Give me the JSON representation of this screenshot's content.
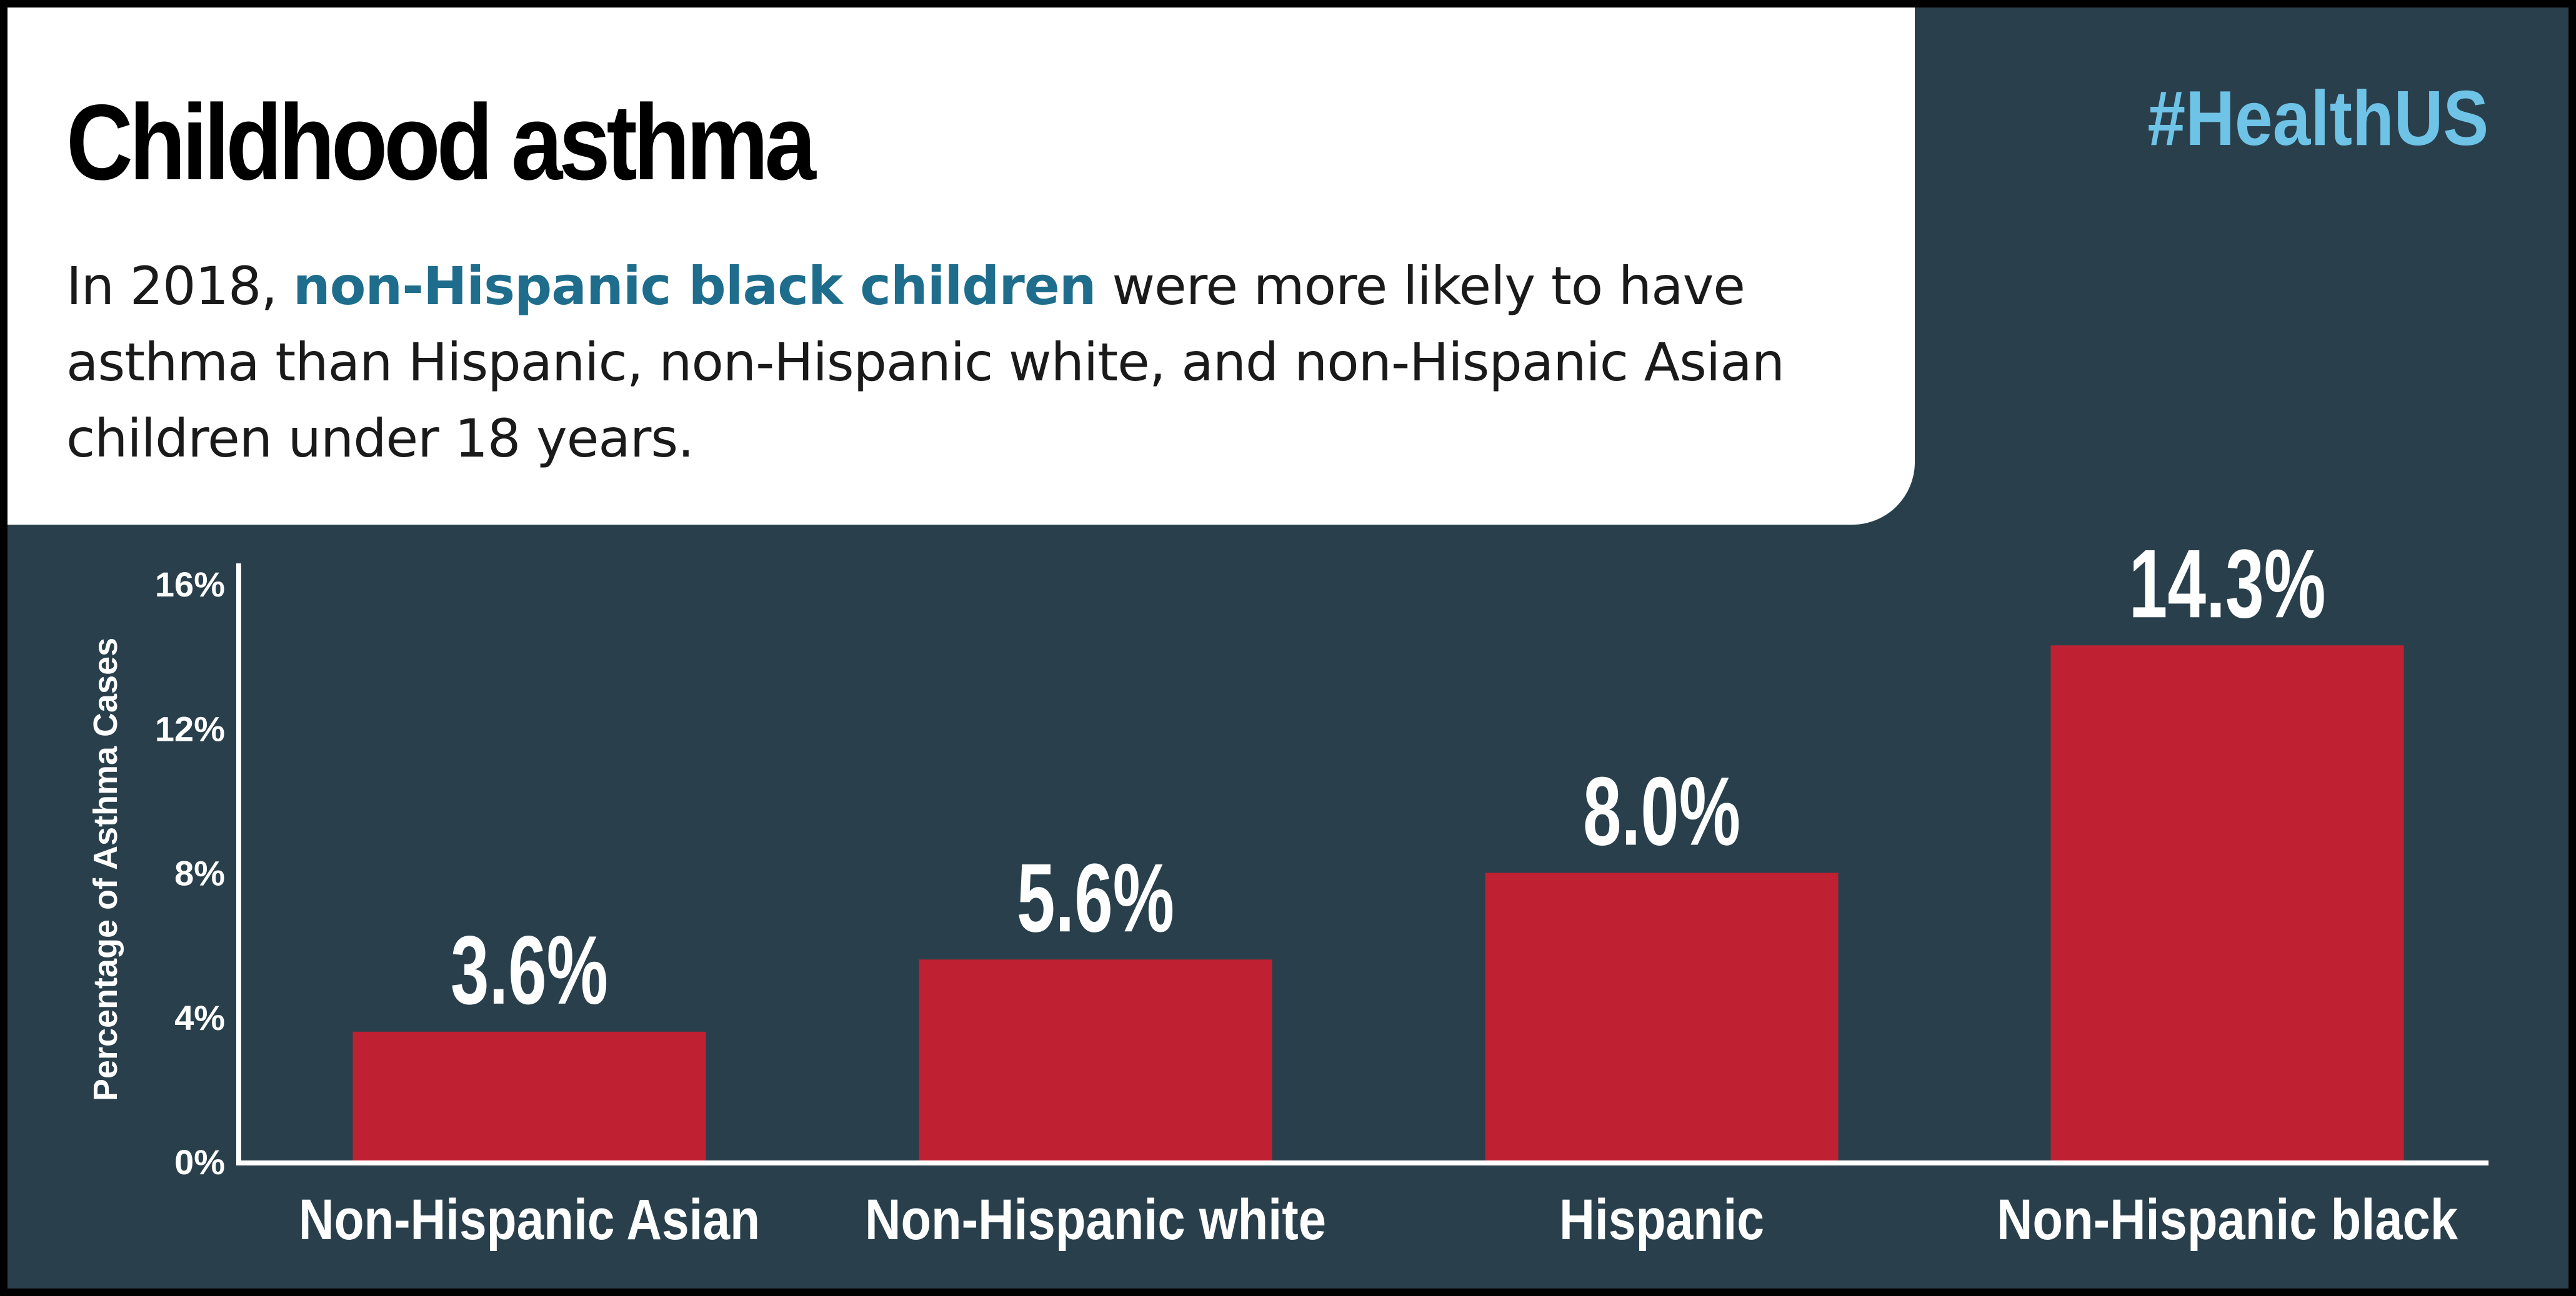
{
  "header": {
    "title": "Childhood asthma",
    "subtitle_prefix": "In 2018, ",
    "subtitle_highlight": "non-Hispanic black children",
    "subtitle_suffix": " were more likely to have asthma than Hispanic, non-Hispanic white, and non-Hispanic Asian children under 18 years.",
    "hashtag": "#HealthUS"
  },
  "colors": {
    "background": "#29404c",
    "panel": "#ffffff",
    "bar": "#bf2032",
    "highlight": "#1f6d8c",
    "hashtag": "#6ec3e6",
    "chart_text": "#ffffff"
  },
  "chart_data": {
    "type": "bar",
    "categories": [
      "Non-Hispanic Asian",
      "Non-Hispanic white",
      "Hispanic",
      "Non-Hispanic black"
    ],
    "values": [
      3.6,
      5.6,
      8.0,
      14.3
    ],
    "value_labels": [
      "3.6%",
      "5.6%",
      "8.0%",
      "14.3%"
    ],
    "ylabel": "Percentage of Asthma Cases",
    "yticks": [
      0,
      4,
      8,
      12,
      16
    ],
    "ytick_labels": [
      "0%",
      "4%",
      "8%",
      "12%",
      "16%"
    ],
    "ylim": [
      0,
      16
    ],
    "grid": false,
    "legend": "none"
  }
}
